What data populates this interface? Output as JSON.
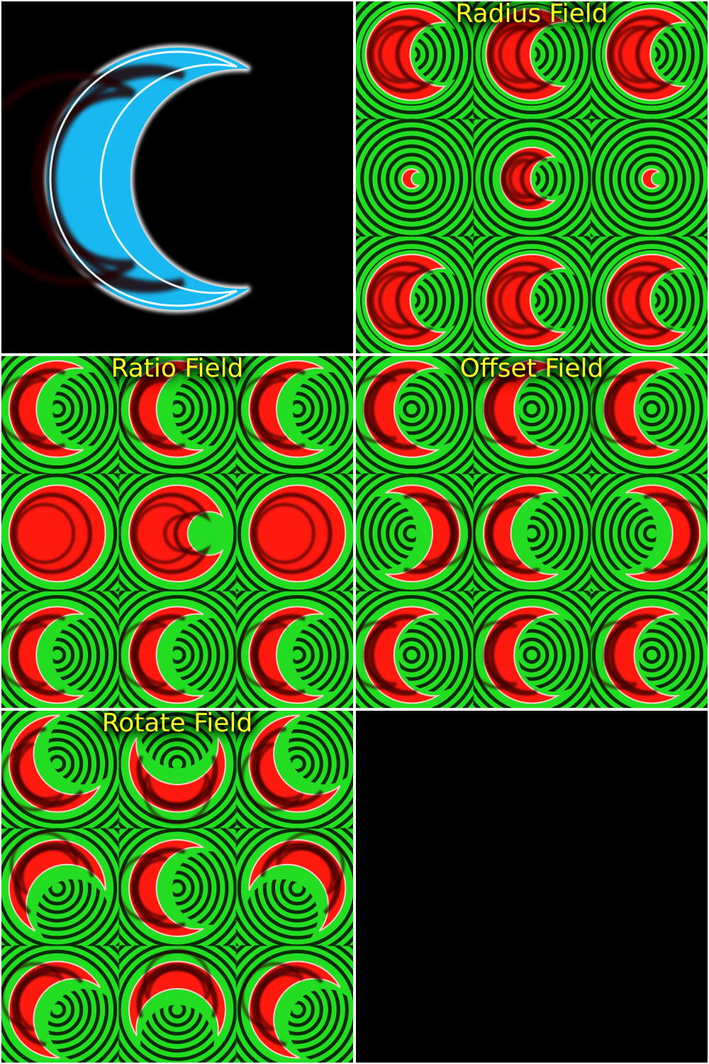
{
  "colors": {
    "background": "#000000",
    "grid_line": "#ffffff",
    "ring_green": "#22dd22",
    "ring_dark": "#0b2a08",
    "crescent_red": "#ff1a10",
    "crescent_dark": "#300000",
    "crescent_edge": "#ffd0c8",
    "preview_blue": "#1ab8f0",
    "preview_dark": "#200000",
    "preview_edge": "#ffffff",
    "title": "#ffff22"
  },
  "preview": {
    "shape": "crescent"
  },
  "fields": [
    {
      "title": "Radius Field",
      "tiles": [
        {
          "scale": 0.95,
          "ratio": 0.7,
          "offset": 0.35,
          "rotate": 0
        },
        {
          "scale": 0.95,
          "ratio": 0.7,
          "offset": 0.35,
          "rotate": 0
        },
        {
          "scale": 0.95,
          "ratio": 0.7,
          "offset": 0.35,
          "rotate": 0
        },
        {
          "scale": 0.2,
          "ratio": 0.7,
          "offset": 0.35,
          "rotate": 0
        },
        {
          "scale": 0.65,
          "ratio": 0.7,
          "offset": 0.35,
          "rotate": 0
        },
        {
          "scale": 0.2,
          "ratio": 0.7,
          "offset": 0.35,
          "rotate": 0
        },
        {
          "scale": 0.95,
          "ratio": 0.7,
          "offset": 0.35,
          "rotate": 0
        },
        {
          "scale": 0.95,
          "ratio": 0.7,
          "offset": 0.35,
          "rotate": 0
        },
        {
          "scale": 0.95,
          "ratio": 0.7,
          "offset": 0.35,
          "rotate": 0
        }
      ]
    },
    {
      "title": "Ratio Field",
      "tiles": [
        {
          "scale": 1,
          "ratio": 0.85,
          "offset": 0.35,
          "rotate": 0
        },
        {
          "scale": 1,
          "ratio": 0.85,
          "offset": 0.35,
          "rotate": 0
        },
        {
          "scale": 1,
          "ratio": 0.85,
          "offset": 0.35,
          "rotate": 0
        },
        {
          "scale": 1,
          "ratio": 0.05,
          "offset": 0.35,
          "rotate": 0
        },
        {
          "scale": 1,
          "ratio": 0.45,
          "offset": 0.35,
          "rotate": 0
        },
        {
          "scale": 1,
          "ratio": 0.05,
          "offset": 0.35,
          "rotate": 0
        },
        {
          "scale": 1,
          "ratio": 0.85,
          "offset": 0.35,
          "rotate": 0
        },
        {
          "scale": 1,
          "ratio": 0.85,
          "offset": 0.35,
          "rotate": 0
        },
        {
          "scale": 1,
          "ratio": 0.85,
          "offset": 0.35,
          "rotate": 0
        }
      ]
    },
    {
      "title": "Offset Field",
      "tiles": [
        {
          "scale": 1,
          "ratio": 0.85,
          "offset": 0.15,
          "rotate": 0
        },
        {
          "scale": 1,
          "ratio": 0.85,
          "offset": 0.15,
          "rotate": 0
        },
        {
          "scale": 1,
          "ratio": 0.85,
          "offset": 0.15,
          "rotate": 0
        },
        {
          "scale": 1,
          "ratio": 0.85,
          "offset": -0.35,
          "rotate": 0
        },
        {
          "scale": 1,
          "ratio": 0.85,
          "offset": 0.35,
          "rotate": 0
        },
        {
          "scale": 1,
          "ratio": 0.85,
          "offset": -0.35,
          "rotate": 0
        },
        {
          "scale": 1,
          "ratio": 0.85,
          "offset": 0.15,
          "rotate": 0
        },
        {
          "scale": 1,
          "ratio": 0.85,
          "offset": 0.15,
          "rotate": 0
        },
        {
          "scale": 1,
          "ratio": 0.85,
          "offset": 0.15,
          "rotate": 0
        }
      ]
    },
    {
      "title": "Rotate Field",
      "tiles": [
        {
          "scale": 1,
          "ratio": 0.85,
          "offset": 0.35,
          "rotate": -30
        },
        {
          "scale": 1,
          "ratio": 0.85,
          "offset": 0.35,
          "rotate": -90
        },
        {
          "scale": 1,
          "ratio": 0.85,
          "offset": 0.35,
          "rotate": -30
        },
        {
          "scale": 1,
          "ratio": 0.85,
          "offset": 0.35,
          "rotate": 60
        },
        {
          "scale": 1,
          "ratio": 0.85,
          "offset": 0.35,
          "rotate": 0
        },
        {
          "scale": 1,
          "ratio": 0.85,
          "offset": 0.35,
          "rotate": 120
        },
        {
          "scale": 1,
          "ratio": 0.85,
          "offset": 0.35,
          "rotate": 30
        },
        {
          "scale": 1,
          "ratio": 0.85,
          "offset": 0.35,
          "rotate": 90
        },
        {
          "scale": 1,
          "ratio": 0.85,
          "offset": 0.35,
          "rotate": 30
        }
      ]
    }
  ]
}
